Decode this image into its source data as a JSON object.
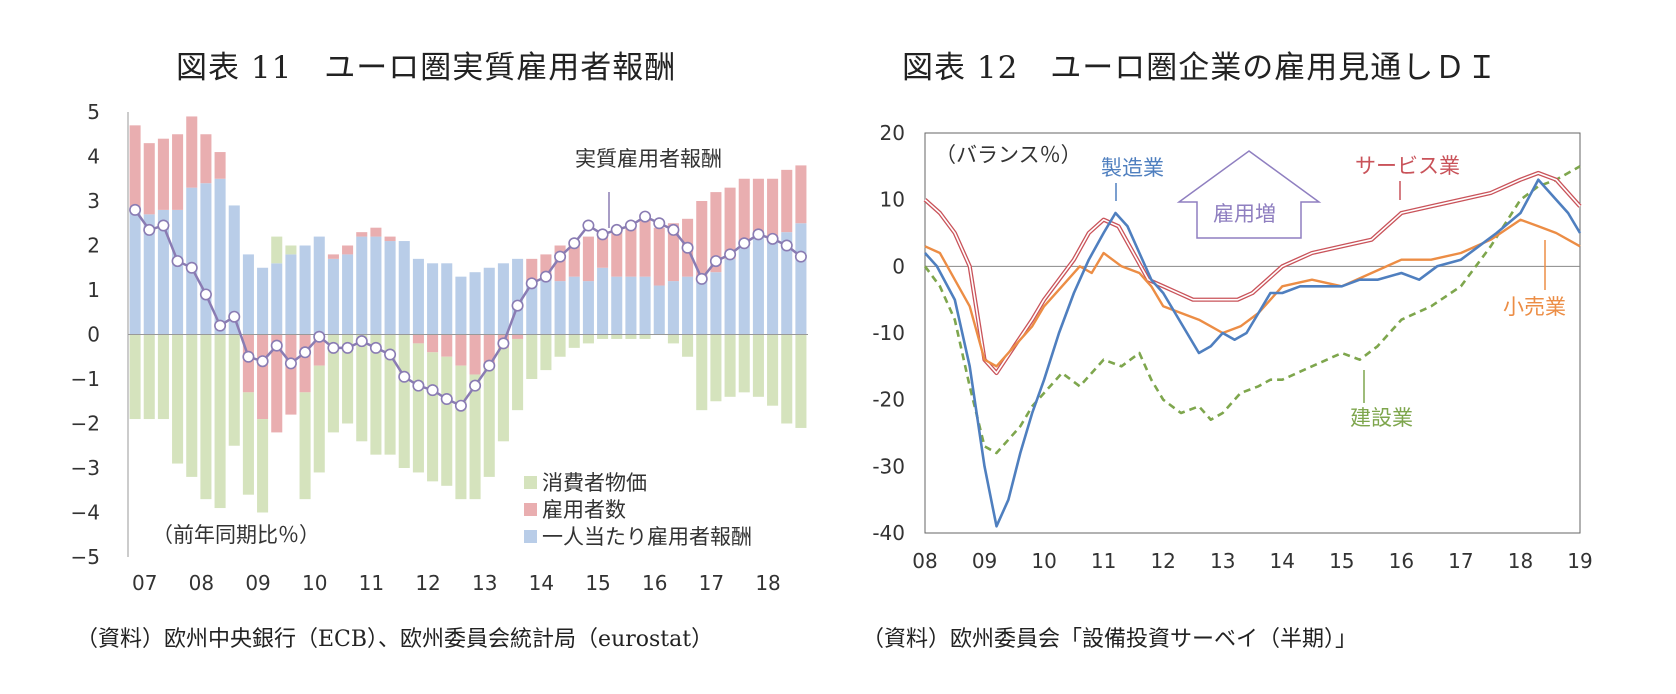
{
  "titles": {
    "left": "図表 11　ユーロ圏実質雇用者報酬",
    "right": "図表 12　ユーロ圏企業の雇用見通しＤＩ"
  },
  "sources": {
    "left": "（資料）欧州中央銀行（ECB）、欧州委員会統計局（eurostat）",
    "right": "（資料）欧州委員会「設備投資サーベイ（半期）」"
  },
  "colors": {
    "cpi": "#d5e3bd",
    "employees": "#e9aeb0",
    "comp": "#b9cde8",
    "real_line": "#8a7cb3",
    "manufacturing": "#4f7fbf",
    "services": "#c9535a",
    "retail": "#ec8d45",
    "construction": "#7ea64d",
    "arrow": "#8f7fc0"
  },
  "chart_data": [
    {
      "type": "bar",
      "subtype": "stacked-bar-with-line",
      "title": "図表 11　ユーロ圏実質雇用者報酬",
      "unit_note": "（前年同期比％）",
      "ylim": [
        -5,
        5
      ],
      "yticks": [
        "5",
        "4",
        "3",
        "2",
        "1",
        "0",
        "−1",
        "−2",
        "−3",
        "−4",
        "−5"
      ],
      "xtick_labels": [
        "07",
        "08",
        "09",
        "10",
        "11",
        "12",
        "13",
        "14",
        "15",
        "16",
        "17",
        "18"
      ],
      "x_start_year": 2007,
      "legend": [
        "消費者物価",
        "雇用者数",
        "一人当たり雇用者報酬"
      ],
      "line_label": "実質雇用者報酬",
      "series": [
        {
          "name": "一人当たり雇用者報酬",
          "values": [
            2.8,
            2.7,
            2.8,
            2.8,
            3.3,
            3.4,
            3.5,
            2.9,
            1.8,
            1.5,
            1.6,
            1.8,
            2.0,
            2.2,
            1.7,
            1.8,
            2.2,
            2.2,
            2.1,
            2.1,
            1.7,
            1.6,
            1.6,
            1.3,
            1.4,
            1.5,
            1.6,
            1.7,
            1.2,
            1.3,
            1.2,
            1.3,
            1.2,
            1.5,
            1.3,
            1.3,
            1.3,
            1.1,
            1.2,
            1.3,
            1.2,
            1.4,
            1.7,
            2.0,
            2.2,
            2.2,
            2.3,
            2.5
          ]
        },
        {
          "name": "雇用者数",
          "values": [
            1.9,
            1.6,
            1.6,
            1.7,
            1.6,
            1.1,
            0.6,
            0.0,
            -1.3,
            -1.9,
            -2.2,
            -1.8,
            -1.3,
            -0.7,
            0.1,
            0.2,
            0.1,
            0.2,
            0.1,
            0.0,
            -0.2,
            -0.4,
            -0.5,
            -0.7,
            -0.9,
            -0.7,
            -0.3,
            -0.1,
            0.5,
            0.5,
            0.8,
            0.8,
            1.0,
            0.8,
            1.0,
            1.2,
            1.3,
            1.3,
            1.3,
            1.3,
            1.8,
            1.8,
            1.6,
            1.5,
            1.3,
            1.3,
            1.4,
            1.3
          ]
        },
        {
          "name": "消費者物価",
          "values": [
            -1.9,
            -1.9,
            -1.9,
            -2.9,
            -3.2,
            -3.7,
            -3.9,
            -2.5,
            -2.3,
            -2.1,
            0.6,
            0.2,
            -2.4,
            -2.4,
            -2.2,
            -2.0,
            -2.4,
            -2.7,
            -2.7,
            -3.0,
            -2.9,
            -2.9,
            -2.9,
            -3.0,
            -2.8,
            -2.5,
            -2.1,
            -1.6,
            -1.0,
            -0.8,
            -0.5,
            -0.3,
            -0.2,
            -0.1,
            -0.1,
            -0.1,
            -0.1,
            0.0,
            -0.2,
            -0.5,
            -1.7,
            -1.5,
            -1.4,
            -1.3,
            -1.4,
            -1.6,
            -2.0,
            -2.1
          ]
        },
        {
          "name": "実質雇用者報酬",
          "values": [
            2.8,
            2.35,
            2.45,
            1.65,
            1.5,
            0.9,
            0.2,
            0.4,
            -0.5,
            -0.6,
            -0.25,
            -0.65,
            -0.4,
            -0.05,
            -0.3,
            -0.3,
            -0.15,
            -0.3,
            -0.45,
            -0.95,
            -1.15,
            -1.25,
            -1.45,
            -1.6,
            -1.15,
            -0.7,
            -0.2,
            0.65,
            1.15,
            1.3,
            1.75,
            2.05,
            2.45,
            2.25,
            2.35,
            2.45,
            2.65,
            2.5,
            2.35,
            1.95,
            1.25,
            1.65,
            1.8,
            2.05,
            2.25,
            2.15,
            2.0,
            1.75
          ]
        }
      ]
    },
    {
      "type": "line",
      "title": "図表 12　ユーロ圏企業の雇用見通しＤＩ",
      "unit_note": "（バランス％）",
      "ylim": [
        -40,
        20
      ],
      "yticks": [
        "20",
        "10",
        "0",
        "-10",
        "-20",
        "-30",
        "-40"
      ],
      "xtick_labels": [
        "08",
        "09",
        "10",
        "11",
        "12",
        "13",
        "14",
        "15",
        "16",
        "17",
        "18",
        "19"
      ],
      "x_range": [
        2008,
        2019
      ],
      "annotation": "雇用増",
      "series": [
        {
          "name": "製造業",
          "x": [
            2008,
            2008.2,
            2008.5,
            2008.75,
            2009,
            2009.2,
            2009.4,
            2009.6,
            2009.8,
            2010,
            2010.25,
            2010.5,
            2010.75,
            2011,
            2011.2,
            2011.4,
            2011.6,
            2011.8,
            2012,
            2012.2,
            2012.4,
            2012.6,
            2012.8,
            2013,
            2013.2,
            2013.4,
            2013.6,
            2013.8,
            2014,
            2014.3,
            2014.6,
            2015,
            2015.3,
            2015.6,
            2016,
            2016.3,
            2016.6,
            2017,
            2017.3,
            2017.6,
            2018,
            2018.3,
            2018.6,
            2018.8,
            2019
          ],
          "values": [
            2,
            0,
            -5,
            -15,
            -30,
            -39,
            -35,
            -28,
            -22,
            -17,
            -10,
            -4,
            1,
            5,
            8,
            6,
            2,
            -2,
            -4,
            -7,
            -10,
            -13,
            -12,
            -10,
            -11,
            -10,
            -7,
            -4,
            -4,
            -3,
            -3,
            -3,
            -2,
            -2,
            -1,
            -2,
            0,
            1,
            3,
            5,
            8,
            13,
            10,
            8,
            5
          ]
        },
        {
          "name": "サービス業",
          "x": [
            2008,
            2008.25,
            2008.5,
            2008.75,
            2009,
            2009.2,
            2009.5,
            2009.8,
            2010,
            2010.25,
            2010.5,
            2010.75,
            2011,
            2011.25,
            2011.5,
            2011.75,
            2012,
            2012.25,
            2012.5,
            2012.75,
            2013,
            2013.25,
            2013.5,
            2013.75,
            2014,
            2014.5,
            2015,
            2015.5,
            2016,
            2016.5,
            2017,
            2017.5,
            2018,
            2018.3,
            2018.6,
            2019
          ],
          "values": [
            10,
            8,
            5,
            0,
            -14,
            -16,
            -12,
            -8,
            -5,
            -2,
            1,
            5,
            7,
            6,
            2,
            -2,
            -3,
            -4,
            -5,
            -5,
            -5,
            -5,
            -4,
            -2,
            0,
            2,
            3,
            4,
            8,
            9,
            10,
            11,
            13,
            14,
            13,
            9
          ]
        },
        {
          "name": "小売業",
          "x": [
            2008,
            2008.25,
            2008.5,
            2008.75,
            2009,
            2009.2,
            2009.5,
            2009.8,
            2010,
            2010.3,
            2010.6,
            2010.8,
            2011,
            2011.3,
            2011.6,
            2011.8,
            2012,
            2012.3,
            2012.6,
            2012.8,
            2013,
            2013.3,
            2013.6,
            2013.8,
            2014,
            2014.5,
            2015,
            2015.5,
            2016,
            2016.5,
            2017,
            2017.5,
            2018,
            2018.3,
            2018.6,
            2019
          ],
          "values": [
            3,
            2,
            -2,
            -6,
            -14,
            -15,
            -12,
            -9,
            -6,
            -3,
            0,
            -1,
            2,
            0,
            -1,
            -3,
            -6,
            -7,
            -8,
            -9,
            -10,
            -9,
            -7,
            -5,
            -3,
            -2,
            -3,
            -1,
            1,
            1,
            2,
            4,
            7,
            6,
            5,
            3
          ]
        },
        {
          "name": "建設業",
          "x": [
            2008,
            2008.25,
            2008.5,
            2008.75,
            2009,
            2009.2,
            2009.4,
            2009.6,
            2009.8,
            2010,
            2010.3,
            2010.6,
            2010.8,
            2011,
            2011.3,
            2011.6,
            2011.8,
            2012,
            2012.3,
            2012.6,
            2012.8,
            2013,
            2013.3,
            2013.6,
            2013.8,
            2014,
            2014.5,
            2015,
            2015.3,
            2015.6,
            2016,
            2016.5,
            2017,
            2017.5,
            2018,
            2018.3,
            2018.6,
            2019
          ],
          "values": [
            0,
            -3,
            -8,
            -18,
            -27,
            -28,
            -26,
            -24,
            -21,
            -19,
            -16,
            -18,
            -16,
            -14,
            -15,
            -13,
            -17,
            -20,
            -22,
            -21,
            -23,
            -22,
            -19,
            -18,
            -17,
            -17,
            -15,
            -13,
            -14,
            -12,
            -8,
            -6,
            -3,
            3,
            10,
            12,
            13,
            15
          ]
        }
      ],
      "series_labels": [
        "製造業",
        "サービス業",
        "小売業",
        "建設業"
      ]
    }
  ]
}
